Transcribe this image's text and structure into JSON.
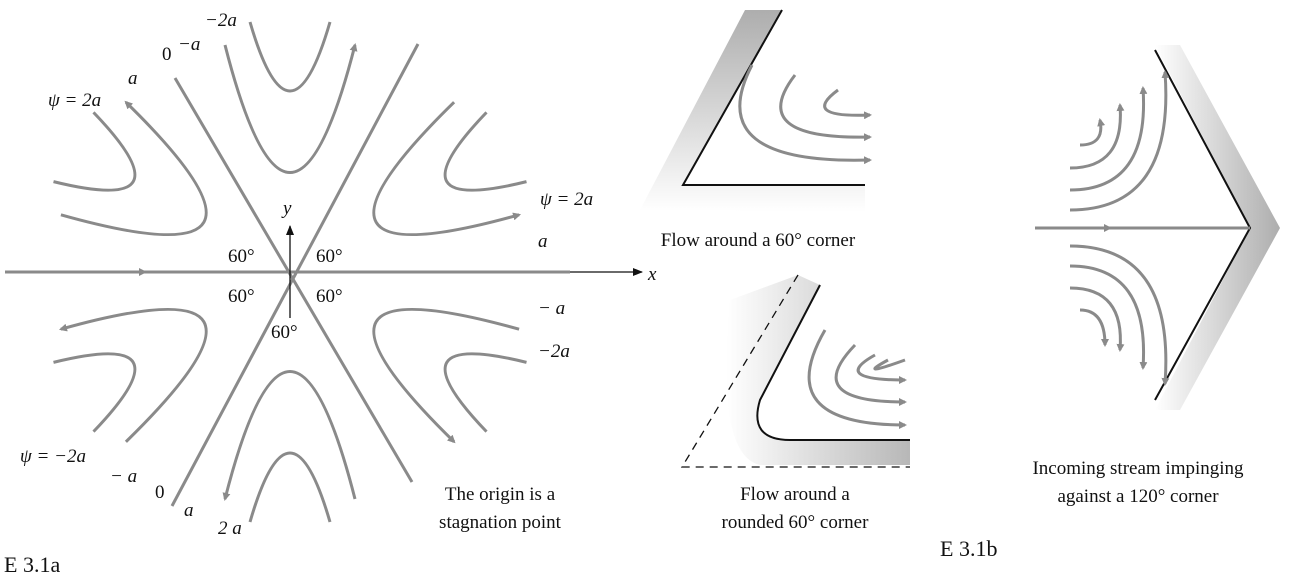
{
  "figure_a": {
    "stream_labels_top": [
      "0",
      "−a",
      "−2a",
      "a",
      "ψ = 2a"
    ],
    "stream_labels_right": [
      "ψ = 2a",
      "a",
      "− a",
      "−2a"
    ],
    "stream_labels_bottom": [
      "ψ = −2a",
      "− a",
      "0",
      "a",
      "2 a"
    ],
    "axis_x": "x",
    "axis_y": "y",
    "angles": [
      "60°",
      "60°",
      "60°",
      "60°",
      "60°"
    ],
    "caption": [
      "The origin is a",
      "stagnation point"
    ],
    "label": "E 3.1a"
  },
  "figure_b": {
    "corner_caption": "Flow around a 60° corner",
    "rounded_caption": [
      "Flow around a",
      "rounded 60° corner"
    ],
    "impinging_caption": [
      "Incoming stream impinging",
      "against a 120° corner"
    ],
    "label": "E 3.1b"
  }
}
